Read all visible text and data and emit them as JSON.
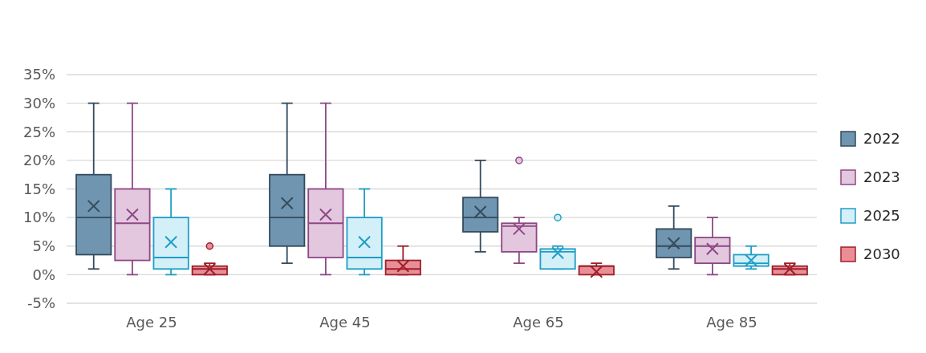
{
  "chart_data": {
    "type": "box",
    "categories": [
      "Age 25",
      "Age 45",
      "Age 65",
      "Age 85"
    ],
    "ylim": [
      -5,
      35
    ],
    "yticks": [
      {
        "value": -5,
        "label": "-5%"
      },
      {
        "value": 0,
        "label": "0%"
      },
      {
        "value": 5,
        "label": "5%"
      },
      {
        "value": 10,
        "label": "10%"
      },
      {
        "value": 15,
        "label": "15%"
      },
      {
        "value": 20,
        "label": "20%"
      },
      {
        "value": 25,
        "label": "25%"
      },
      {
        "value": 30,
        "label": "30%"
      },
      {
        "value": 35,
        "label": "35%"
      }
    ],
    "grid": "y",
    "legend": "right",
    "marker": "cross",
    "series": [
      {
        "name": "2022",
        "color": "#6f95b0",
        "boxes": [
          {
            "low": 1,
            "q1": 3.5,
            "median": 10,
            "q3": 17.5,
            "high": 30,
            "mean": 12
          },
          {
            "low": 2,
            "q1": 5,
            "median": 10,
            "q3": 17.5,
            "high": 30,
            "mean": 12.5
          },
          {
            "low": 4,
            "q1": 7.5,
            "median": 10,
            "q3": 13.5,
            "high": 20,
            "mean": 11
          },
          {
            "low": 1,
            "q1": 3,
            "median": 5,
            "q3": 8,
            "high": 12,
            "mean": 5.5
          }
        ]
      },
      {
        "name": "2023",
        "color": "#e3c7df",
        "boxes": [
          {
            "low": 0,
            "q1": 2.5,
            "median": 9,
            "q3": 15,
            "high": 30,
            "mean": 10.5
          },
          {
            "low": 0,
            "q1": 3,
            "median": 9,
            "q3": 15,
            "high": 30,
            "mean": 10.5
          },
          {
            "low": 2,
            "q1": 4,
            "median": 8.5,
            "q3": 9,
            "high": 10,
            "mean": 8,
            "outliers": [
              20
            ]
          },
          {
            "low": 0,
            "q1": 2,
            "median": 5,
            "q3": 6.5,
            "high": 10,
            "mean": 4.5
          }
        ]
      },
      {
        "name": "2025",
        "color": "#d3eff8",
        "boxes": [
          {
            "low": 0,
            "q1": 1,
            "median": 3,
            "q3": 10,
            "high": 15,
            "mean": 5.7
          },
          {
            "low": 0,
            "q1": 1,
            "median": 3,
            "q3": 10,
            "high": 15,
            "mean": 5.7
          },
          {
            "low": 1,
            "q1": 1,
            "median": 4,
            "q3": 4.5,
            "high": 5,
            "mean": 3.8,
            "outliers": [
              10
            ]
          },
          {
            "low": 1,
            "q1": 1.5,
            "median": 2,
            "q3": 3.5,
            "high": 5,
            "mean": 2.5
          }
        ]
      },
      {
        "name": "2030",
        "color": "#e98e96",
        "boxes": [
          {
            "low": 0,
            "q1": 0,
            "median": 1,
            "q3": 1.5,
            "high": 2,
            "mean": 1,
            "outliers": [
              5
            ]
          },
          {
            "low": 0,
            "q1": 0,
            "median": 1,
            "q3": 2.5,
            "high": 5,
            "mean": 1.5
          },
          {
            "low": 0,
            "q1": 0,
            "median": 1.5,
            "q3": 1.5,
            "high": 2,
            "mean": 0.5
          },
          {
            "low": 0,
            "q1": 0,
            "median": 1,
            "q3": 1.5,
            "high": 2,
            "mean": 1
          }
        ]
      }
    ]
  }
}
